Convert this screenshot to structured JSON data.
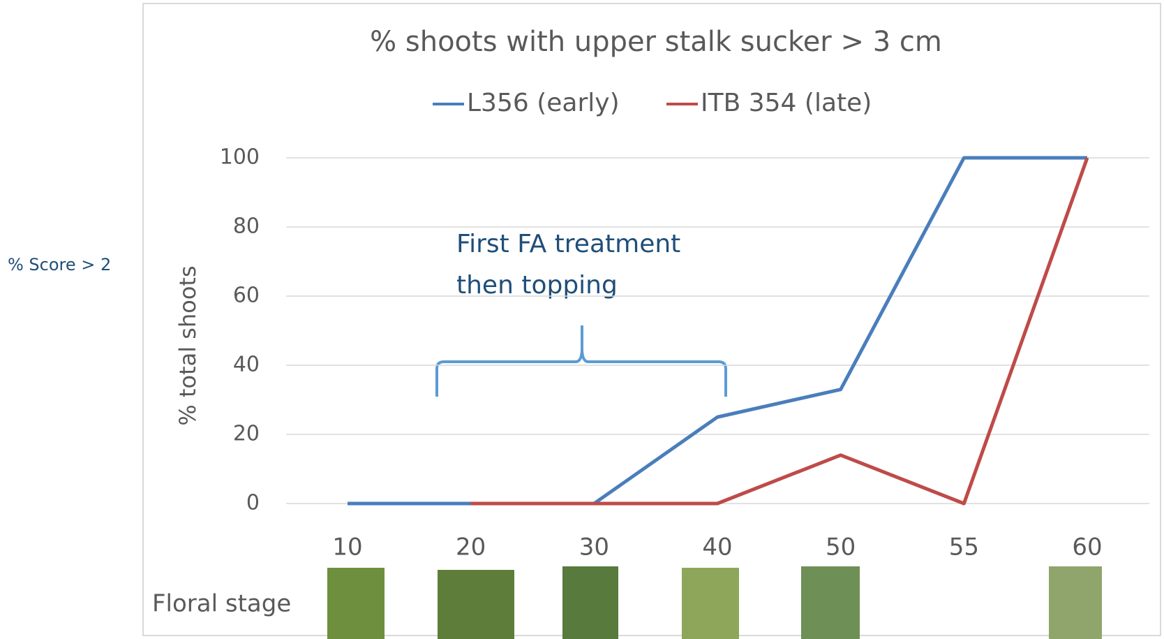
{
  "chart_data": {
    "type": "line",
    "title": "% shoots with upper stalk sucker  > 3 cm",
    "y_label": "% total shoots",
    "x_label": "Floral stage",
    "side_label": "% Score > 2",
    "annotation": [
      "First FA treatment",
      "then topping"
    ],
    "categories": [
      "10",
      "20",
      "30",
      "40",
      "50",
      "55",
      "60"
    ],
    "series": [
      {
        "name": "L356 (early)",
        "color": "#4a7ebb",
        "values": [
          0,
          0,
          0,
          25,
          33,
          100,
          100
        ]
      },
      {
        "name": "ITB 354 (late)",
        "color": "#be4b48",
        "values": [
          null,
          0,
          0,
          0,
          14,
          0,
          100
        ]
      }
    ],
    "ylim": [
      0,
      100
    ],
    "yticks": [
      0,
      20,
      40,
      60,
      80,
      100
    ],
    "grid": true,
    "legend": "top"
  }
}
